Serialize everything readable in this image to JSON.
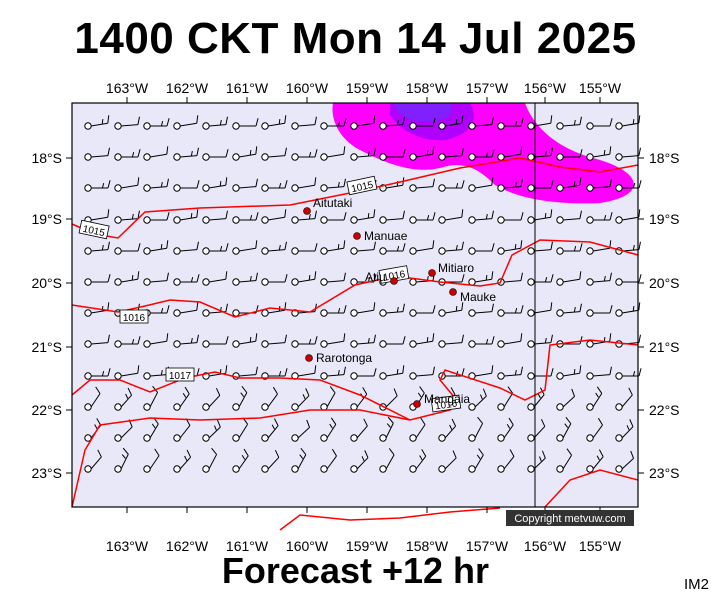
{
  "header": {
    "title": "1400 CKT Mon 14 Jul 2025"
  },
  "footer": {
    "forecast_label": "Forecast +12 hr",
    "corner_code": "IM2",
    "copyright": "Copyright metvuw.com"
  },
  "map": {
    "lon_labels": [
      "163°W",
      "162°W",
      "161°W",
      "160°W",
      "159°W",
      "158°W",
      "157°W",
      "156°W",
      "155°W"
    ],
    "lat_labels": [
      "18°S",
      "19°S",
      "20°S",
      "21°S",
      "22°S",
      "23°S"
    ],
    "places": [
      {
        "name": "Aitutaki"
      },
      {
        "name": "Manuae"
      },
      {
        "name": "Atiu"
      },
      {
        "name": "Mitiaro"
      },
      {
        "name": "Mauke"
      },
      {
        "name": "Rarotonga"
      },
      {
        "name": "Mangaia"
      }
    ],
    "isobar_labels": [
      "1015",
      "1015",
      "1016",
      "1016",
      "1017",
      "1016"
    ],
    "colors": {
      "background": "#e8e8f8",
      "isobar": "#ff0000",
      "rain_light": "#ff00ff",
      "rain_heavy": "#b000ff",
      "town": "#cc0000"
    }
  }
}
